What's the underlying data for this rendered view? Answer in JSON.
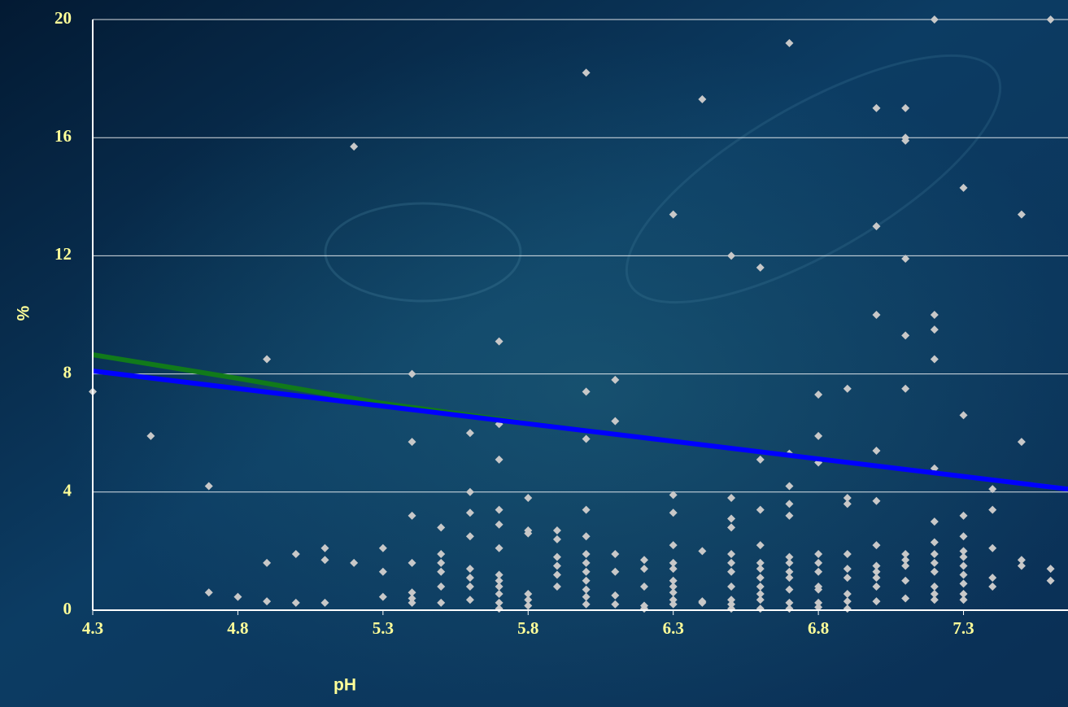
{
  "chart_data": {
    "type": "scatter",
    "x_label": "pH",
    "y_label": "%",
    "xlim": [
      4.3,
      7.66
    ],
    "xticks": [
      4.3,
      4.8,
      5.3,
      5.8,
      6.3,
      6.8,
      7.3
    ],
    "ylim": [
      0,
      20
    ],
    "yticks": [
      0,
      4,
      8,
      12,
      16,
      20
    ],
    "grid": true,
    "series": [
      {
        "color": "#c8c8c8",
        "marker": "diamond",
        "x": [
          4.3,
          4.5,
          4.7,
          4.7,
          4.8,
          4.9,
          4.9,
          4.9,
          5.0,
          5.0,
          5.1,
          5.1,
          5.1,
          5.2,
          5.2,
          5.3,
          5.3,
          5.3,
          5.4,
          5.4,
          5.4,
          5.4,
          5.4,
          5.4,
          5.4,
          5.5,
          5.5,
          5.5,
          5.5,
          5.5,
          5.5,
          5.6,
          5.6,
          5.6,
          5.6,
          5.6,
          5.6,
          5.6,
          5.6,
          5.7,
          5.7,
          5.7,
          5.7,
          5.7,
          5.7,
          5.7,
          5.7,
          5.7,
          5.7,
          5.7,
          5.7,
          5.8,
          5.8,
          5.8,
          5.8,
          5.8,
          5.8,
          5.9,
          5.9,
          5.9,
          5.9,
          5.9,
          5.9,
          6.0,
          6.0,
          6.0,
          6.0,
          6.0,
          6.0,
          6.0,
          6.0,
          6.0,
          6.0,
          6.0,
          6.0,
          6.1,
          6.1,
          6.1,
          6.1,
          6.1,
          6.1,
          6.2,
          6.2,
          6.2,
          6.2,
          6.2,
          6.3,
          6.3,
          6.3,
          6.3,
          6.3,
          6.3,
          6.3,
          6.3,
          6.3,
          6.3,
          6.3,
          6.4,
          6.4,
          6.4,
          6.4,
          6.5,
          6.5,
          6.5,
          6.5,
          6.5,
          6.5,
          6.5,
          6.5,
          6.5,
          6.5,
          6.5,
          6.6,
          6.6,
          6.6,
          6.6,
          6.6,
          6.6,
          6.6,
          6.6,
          6.6,
          6.6,
          6.6,
          6.7,
          6.7,
          6.7,
          6.7,
          6.7,
          6.7,
          6.7,
          6.7,
          6.7,
          6.7,
          6.7,
          6.7,
          6.8,
          6.8,
          6.8,
          6.8,
          6.8,
          6.8,
          6.8,
          6.8,
          6.8,
          6.8,
          6.9,
          6.9,
          6.9,
          6.9,
          6.9,
          6.9,
          6.9,
          6.9,
          6.9,
          7.0,
          7.0,
          7.0,
          7.0,
          7.0,
          7.0,
          7.0,
          7.0,
          7.0,
          7.0,
          7.0,
          7.1,
          7.1,
          7.1,
          7.1,
          7.1,
          7.1,
          7.1,
          7.1,
          7.1,
          7.1,
          7.1,
          7.2,
          7.2,
          7.2,
          7.2,
          7.2,
          7.2,
          7.2,
          7.2,
          7.2,
          7.2,
          7.2,
          7.2,
          7.2,
          7.3,
          7.3,
          7.3,
          7.3,
          7.3,
          7.3,
          7.3,
          7.3,
          7.3,
          7.3,
          7.3,
          7.4,
          7.4,
          7.4,
          7.4,
          7.4,
          7.5,
          7.5,
          7.5,
          7.5,
          7.6,
          7.6,
          7.6
        ],
        "values": [
          7.4,
          5.9,
          4.2,
          0.6,
          0.45,
          8.5,
          1.6,
          0.3,
          1.9,
          0.25,
          2.1,
          1.7,
          0.25,
          15.7,
          1.6,
          2.1,
          1.3,
          0.45,
          8.0,
          5.7,
          3.2,
          1.6,
          0.6,
          0.4,
          0.25,
          2.8,
          1.9,
          1.6,
          1.3,
          0.8,
          0.25,
          6.0,
          4.0,
          3.3,
          2.5,
          1.4,
          1.1,
          0.8,
          0.35,
          9.1,
          6.3,
          5.1,
          3.4,
          2.9,
          2.1,
          1.2,
          1.0,
          0.8,
          0.55,
          0.25,
          0.05,
          3.8,
          2.7,
          2.6,
          0.55,
          0.35,
          0.15,
          2.7,
          2.4,
          1.8,
          1.5,
          1.2,
          0.8,
          18.2,
          7.4,
          5.8,
          3.4,
          2.5,
          1.9,
          1.6,
          1.3,
          1.0,
          0.7,
          0.45,
          0.2,
          7.8,
          6.4,
          1.9,
          1.3,
          0.5,
          0.2,
          1.7,
          1.4,
          0.8,
          0.15,
          0.05,
          13.4,
          3.9,
          3.3,
          2.2,
          1.6,
          1.4,
          1.0,
          0.8,
          0.6,
          0.35,
          0.2,
          17.3,
          2.0,
          0.3,
          0.25,
          12.0,
          3.8,
          3.1,
          2.8,
          1.9,
          1.6,
          1.3,
          0.8,
          0.35,
          0.2,
          0.05,
          11.6,
          5.1,
          3.4,
          2.2,
          1.6,
          1.4,
          1.1,
          0.8,
          0.55,
          0.35,
          0.05,
          19.2,
          5.3,
          4.2,
          3.6,
          3.2,
          1.8,
          1.6,
          1.3,
          1.1,
          0.7,
          0.25,
          0.05,
          7.3,
          5.9,
          5.0,
          1.9,
          1.6,
          1.3,
          0.8,
          0.7,
          0.25,
          0.1,
          7.5,
          3.8,
          3.6,
          1.9,
          1.4,
          1.1,
          0.55,
          0.3,
          0.05,
          17.0,
          13.0,
          10.0,
          5.4,
          3.7,
          2.2,
          1.5,
          1.3,
          1.1,
          0.8,
          0.3,
          17.0,
          16.0,
          15.9,
          11.9,
          9.3,
          7.5,
          1.9,
          1.7,
          1.5,
          1.0,
          0.4,
          20.0,
          10.0,
          9.5,
          8.5,
          4.8,
          3.0,
          2.3,
          1.9,
          1.6,
          1.3,
          0.8,
          0.55,
          0.35,
          14.3,
          6.6,
          3.2,
          2.5,
          2.0,
          1.8,
          1.5,
          1.2,
          0.9,
          0.55,
          0.35,
          4.1,
          3.4,
          2.1,
          1.1,
          0.8,
          13.4,
          5.7,
          1.7,
          1.5,
          20.0,
          1.4,
          1.0
        ]
      },
      {
        "color": "#117a1a",
        "line": true,
        "x": [
          4.3,
          4.8,
          5.3,
          5.8,
          6.3,
          6.8,
          7.3,
          7.66
        ],
        "values": [
          8.65,
          7.85,
          7.0,
          6.33,
          5.72,
          5.13,
          4.53,
          4.1
        ]
      },
      {
        "color": "#0000ff",
        "line": true,
        "x": [
          4.3,
          7.66
        ],
        "values": [
          8.1,
          4.1
        ]
      }
    ]
  }
}
